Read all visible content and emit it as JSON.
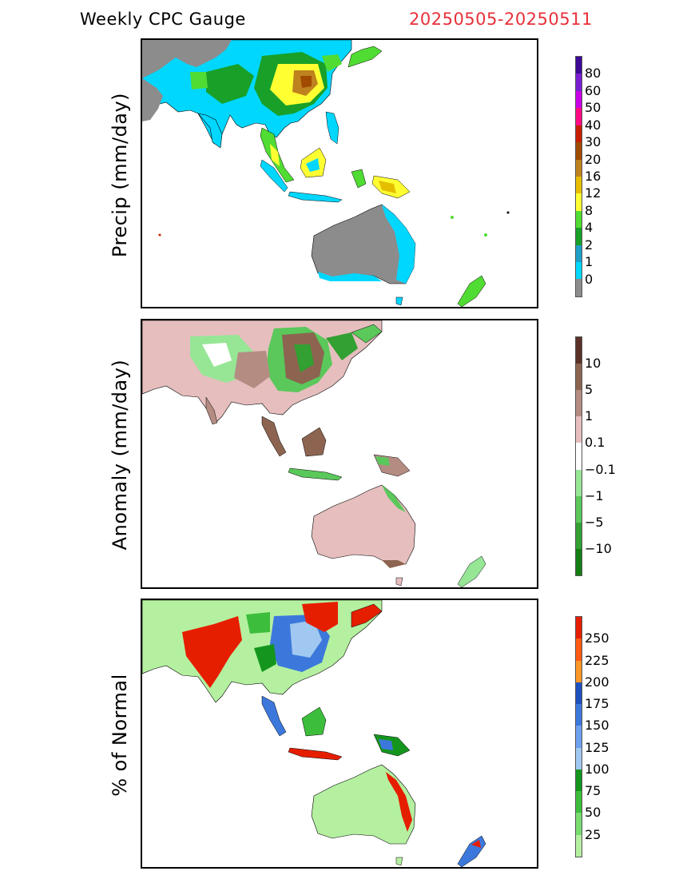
{
  "header": {
    "title": "Weekly CPC Gauge",
    "date_range": "20250505-20250511"
  },
  "panels": [
    {
      "label": "Precip (mm/day)",
      "colorbar": {
        "colors": [
          "#8c8c8c",
          "#00d7ff",
          "#1ea0c8",
          "#18a028",
          "#50dc32",
          "#ffff32",
          "#e6be00",
          "#be821e",
          "#a04b00",
          "#c81e00",
          "#ff0a82",
          "#c800e6",
          "#7a1ed2",
          "#3c0a96"
        ],
        "labels": [
          "80",
          "60",
          "50",
          "40",
          "30",
          "20",
          "16",
          "12",
          "8",
          "4",
          "2",
          "1",
          "0"
        ]
      }
    },
    {
      "label": "Anomaly (mm/day)",
      "colorbar": {
        "colors": [
          "#147d14",
          "#32a032",
          "#5ac85a",
          "#96e696",
          "#ffffff",
          "#e6bebe",
          "#b48c82",
          "#8c6450",
          "#5a3228"
        ],
        "labels": [
          "10",
          "5",
          "1",
          "0.1",
          "−0.1",
          "−1",
          "−5",
          "−10"
        ]
      }
    },
    {
      "label": "% of Normal",
      "colorbar": {
        "colors": [
          "#b4f0a0",
          "#78dc6e",
          "#3cbe3c",
          "#14961e",
          "#a0c8f0",
          "#6ea0f0",
          "#3c78dc",
          "#1e50be",
          "#ff9628",
          "#ff5a14",
          "#e61e00"
        ],
        "labels": [
          "250",
          "225",
          "200",
          "175",
          "150",
          "125",
          "100",
          "75",
          "50",
          "25"
        ]
      }
    }
  ]
}
